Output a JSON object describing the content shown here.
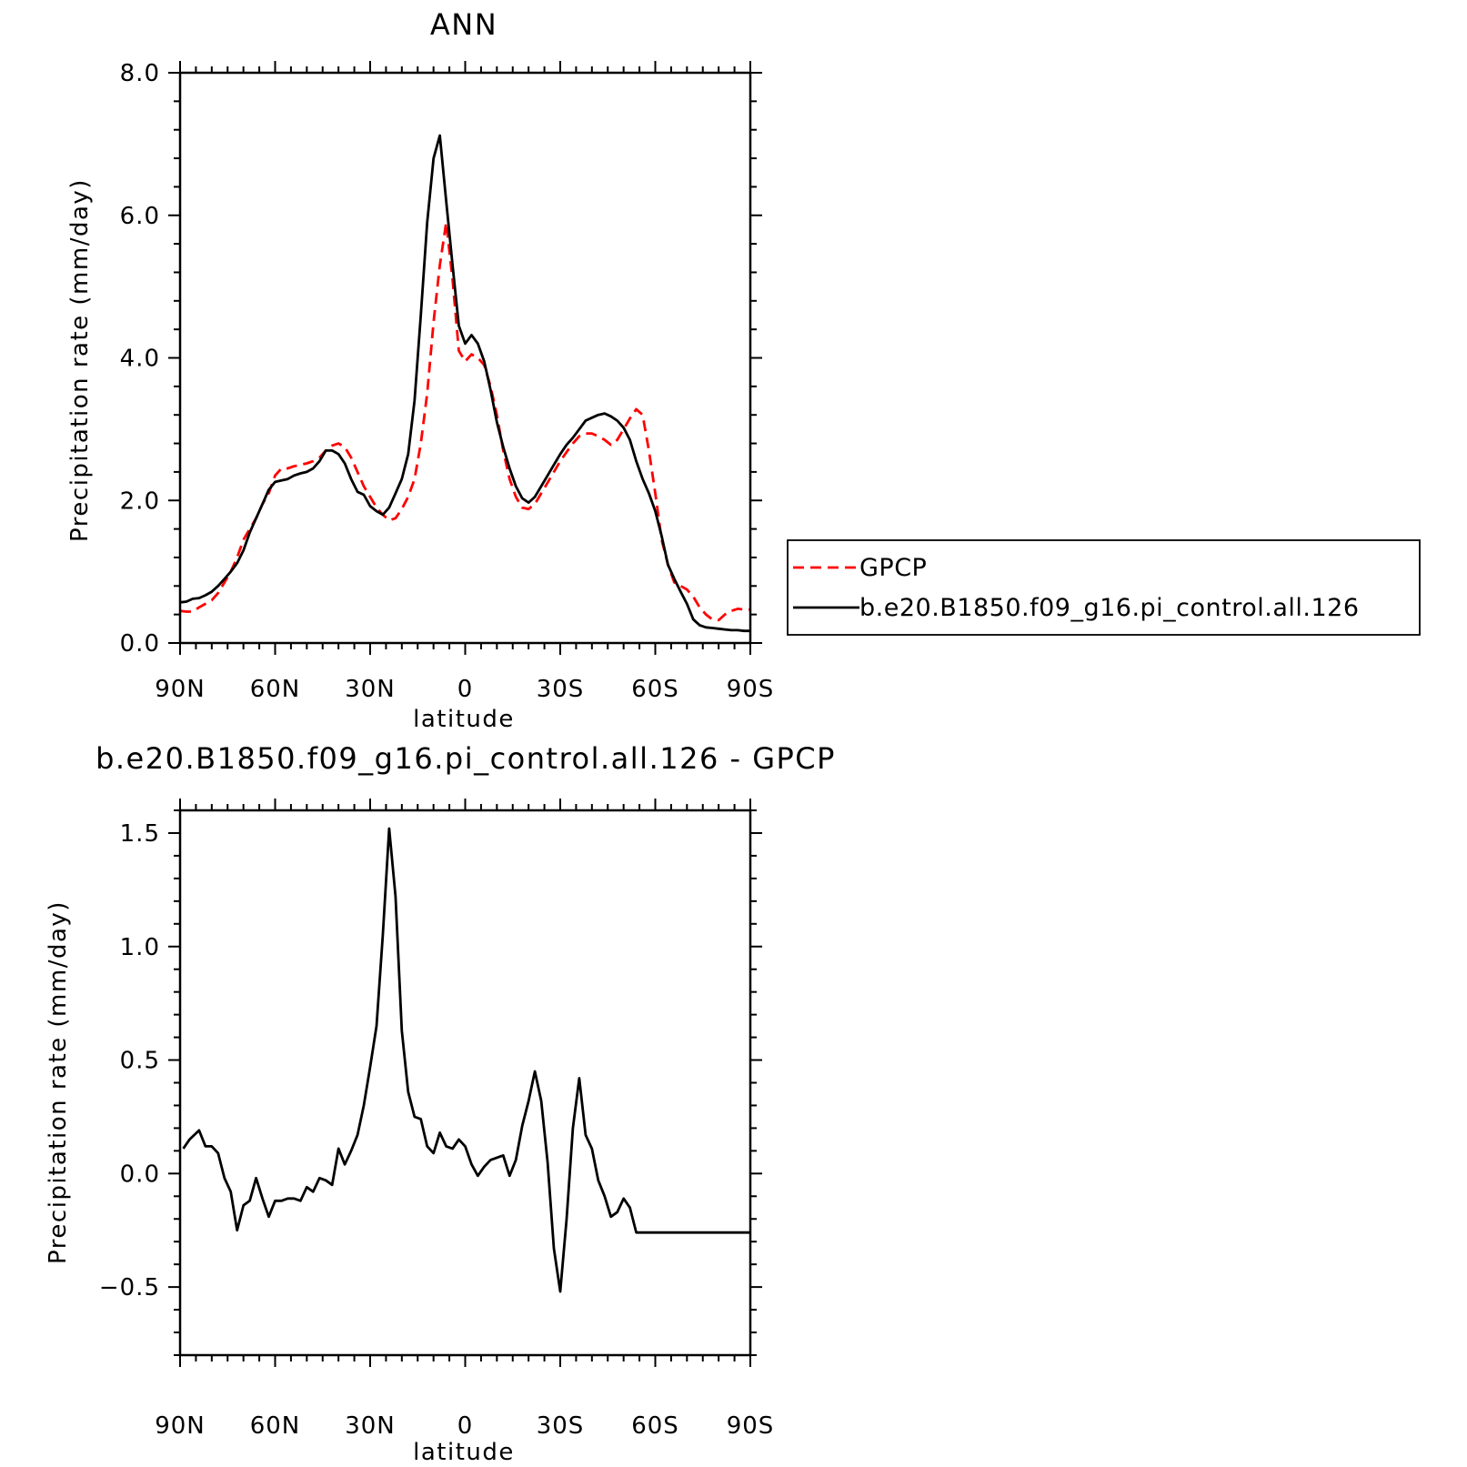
{
  "chart_data": [
    {
      "type": "line",
      "title": "ANN",
      "xlabel": "latitude",
      "ylabel": "Precipitation rate (mm/day)",
      "xlim": [
        90,
        -90
      ],
      "ylim": [
        0,
        8
      ],
      "x_ticks": [
        "90N",
        "60N",
        "30N",
        "0",
        "30S",
        "60S",
        "90S"
      ],
      "y_ticks": [
        "0.0",
        "2.0",
        "4.0",
        "6.0",
        "8.0"
      ],
      "legend": {
        "placement": "right"
      },
      "series": [
        {
          "name": "GPCP",
          "color": "#ff0000",
          "style": "dashed",
          "x": [
            90,
            88,
            86,
            84,
            82,
            80,
            78,
            76,
            74,
            72,
            70,
            68,
            66,
            64,
            62,
            60,
            58,
            56,
            54,
            52,
            50,
            48,
            46,
            44,
            42,
            40,
            38,
            36,
            34,
            32,
            30,
            28,
            26,
            24,
            22,
            20,
            18,
            16,
            14,
            12,
            10,
            8,
            6,
            4,
            2,
            0,
            -2,
            -4,
            -6,
            -8,
            -10,
            -12,
            -14,
            -16,
            -18,
            -20,
            -22,
            -24,
            -26,
            -28,
            -30,
            -32,
            -34,
            -36,
            -38,
            -40,
            -42,
            -44,
            -46,
            -48,
            -50,
            -52,
            -54,
            -56,
            -58,
            -60,
            -62,
            -64,
            -66,
            -68,
            -70,
            -72,
            -74,
            -76,
            -78,
            -80,
            -82,
            -84,
            -86,
            -88,
            -90
          ],
          "values": [
            0.45,
            0.44,
            0.44,
            0.5,
            0.55,
            0.6,
            0.7,
            0.85,
            1.0,
            1.2,
            1.45,
            1.6,
            1.75,
            1.95,
            2.1,
            2.35,
            2.45,
            2.45,
            2.48,
            2.5,
            2.52,
            2.55,
            2.6,
            2.7,
            2.77,
            2.8,
            2.75,
            2.6,
            2.4,
            2.2,
            2.05,
            1.9,
            1.8,
            1.72,
            1.75,
            1.88,
            2.05,
            2.3,
            2.8,
            3.5,
            4.5,
            5.3,
            5.9,
            5.1,
            4.1,
            3.95,
            4.05,
            4.0,
            3.9,
            3.6,
            3.2,
            2.7,
            2.3,
            2.05,
            1.9,
            1.88,
            1.95,
            2.1,
            2.25,
            2.4,
            2.55,
            2.68,
            2.8,
            2.9,
            2.94,
            2.94,
            2.9,
            2.85,
            2.78,
            2.85,
            3.0,
            3.15,
            3.28,
            3.2,
            2.7,
            2.1,
            1.45,
            1.1,
            0.85,
            0.8,
            0.75,
            0.65,
            0.5,
            0.4,
            0.33,
            0.32,
            0.4,
            0.45,
            0.48,
            0.47,
            0.47
          ]
        },
        {
          "name": "b.e20.B1850.f09_g16.pi_control.all.126",
          "color": "#000000",
          "style": "solid",
          "x": [
            90,
            88,
            86,
            84,
            82,
            80,
            78,
            76,
            74,
            72,
            70,
            68,
            66,
            64,
            62,
            60,
            58,
            56,
            54,
            52,
            50,
            48,
            46,
            44,
            42,
            40,
            38,
            36,
            34,
            32,
            30,
            28,
            26,
            24,
            22,
            20,
            18,
            16,
            14,
            12,
            10,
            8,
            6,
            4,
            2,
            0,
            -2,
            -4,
            -6,
            -8,
            -10,
            -12,
            -14,
            -16,
            -18,
            -20,
            -22,
            -24,
            -26,
            -28,
            -30,
            -32,
            -34,
            -36,
            -38,
            -40,
            -42,
            -44,
            -46,
            -48,
            -50,
            -52,
            -54,
            -56,
            -58,
            -60,
            -62,
            -64,
            -66,
            -68,
            -70,
            -72,
            -74,
            -76,
            -78,
            -80,
            -82,
            -84,
            -86,
            -88,
            -90
          ],
          "values": [
            0.57,
            0.58,
            0.62,
            0.63,
            0.67,
            0.72,
            0.8,
            0.9,
            1.0,
            1.12,
            1.3,
            1.55,
            1.75,
            1.95,
            2.15,
            2.26,
            2.28,
            2.3,
            2.35,
            2.38,
            2.4,
            2.45,
            2.55,
            2.7,
            2.7,
            2.65,
            2.52,
            2.3,
            2.12,
            2.08,
            1.92,
            1.85,
            1.8,
            1.9,
            2.1,
            2.3,
            2.65,
            3.4,
            4.6,
            5.9,
            6.8,
            7.12,
            6.2,
            5.3,
            4.45,
            4.2,
            4.32,
            4.2,
            3.95,
            3.55,
            3.1,
            2.75,
            2.45,
            2.2,
            2.03,
            1.97,
            2.05,
            2.2,
            2.35,
            2.5,
            2.65,
            2.78,
            2.88,
            3.0,
            3.12,
            3.16,
            3.2,
            3.22,
            3.18,
            3.12,
            3.02,
            2.85,
            2.55,
            2.3,
            2.1,
            1.85,
            1.5,
            1.1,
            0.9,
            0.72,
            0.55,
            0.33,
            0.25,
            0.22,
            0.21,
            0.2,
            0.19,
            0.18,
            0.18,
            0.17,
            0.17
          ]
        }
      ]
    },
    {
      "type": "line",
      "title": "b.e20.B1850.f09_g16.pi_control.all.126 - GPCP",
      "xlabel": "latitude",
      "ylabel": "Precipitation rate (mm/day)",
      "xlim": [
        90,
        -90
      ],
      "ylim": [
        -0.8,
        1.6
      ],
      "x_ticks": [
        "90N",
        "60N",
        "30N",
        "0",
        "30S",
        "60S",
        "90S"
      ],
      "y_ticks": [
        "-0.5",
        "0.0",
        "0.5",
        "1.0",
        "1.5"
      ],
      "series": [
        {
          "color": "#000000",
          "style": "solid",
          "x": [
            89,
            87,
            84,
            82,
            80,
            78,
            76,
            74,
            72,
            70,
            68,
            66,
            64,
            62,
            60,
            58,
            56,
            54,
            52,
            50,
            48,
            46,
            44,
            42,
            40,
            38,
            36,
            34,
            32,
            30,
            28,
            26,
            24,
            22,
            20,
            18,
            16,
            14,
            12,
            10,
            8,
            6,
            4,
            2,
            0,
            -2,
            -4,
            -6,
            -8,
            -10,
            -12,
            -14,
            -16,
            -18,
            -20,
            -22,
            -24,
            -26,
            -28,
            -30,
            -32,
            -34,
            -36,
            -38,
            -40,
            -42,
            -44,
            -46,
            -48,
            -50,
            -52,
            -54,
            -56,
            -58,
            -60,
            -62,
            -64,
            -66,
            -68,
            -70,
            -72,
            -74,
            -76,
            -78,
            -80,
            -82,
            -84,
            -86,
            -88,
            -90
          ],
          "values": [
            0.11,
            0.15,
            0.19,
            0.12,
            0.12,
            0.09,
            -0.02,
            -0.08,
            -0.25,
            -0.14,
            -0.12,
            -0.02,
            -0.11,
            -0.19,
            -0.12,
            -0.12,
            -0.11,
            -0.11,
            -0.12,
            -0.06,
            -0.08,
            -0.02,
            -0.03,
            -0.05,
            0.11,
            0.04,
            0.1,
            0.17,
            0.3,
            0.47,
            0.65,
            1.05,
            1.52,
            1.22,
            0.63,
            0.36,
            0.25,
            0.24,
            0.12,
            0.09,
            0.18,
            0.12,
            0.11,
            0.15,
            0.12,
            0.04,
            -0.01,
            0.03,
            0.06,
            0.07,
            0.08,
            -0.01,
            0.06,
            0.21,
            0.32,
            0.45,
            0.32,
            0.05,
            -0.33,
            -0.52,
            -0.2,
            0.2,
            0.42,
            0.17,
            0.11,
            -0.03,
            -0.1,
            -0.19,
            -0.17,
            -0.11,
            -0.15,
            -0.26,
            -0.26,
            -0.26,
            -0.26,
            -0.26,
            -0.26,
            -0.26,
            -0.26,
            -0.26,
            -0.26,
            -0.26,
            -0.26,
            -0.26,
            -0.26,
            -0.26,
            -0.26,
            -0.26,
            -0.26,
            -0.26
          ]
        }
      ]
    }
  ]
}
